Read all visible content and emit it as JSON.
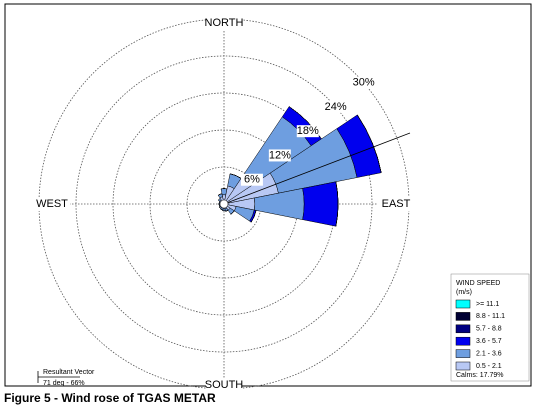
{
  "chart_data": {
    "type": "windrose",
    "categories": [
      "NORTH",
      null,
      null,
      null,
      "EAST",
      null,
      null,
      null,
      "SOUTH",
      null,
      null,
      null,
      "WEST",
      null,
      null,
      null
    ],
    "rlim": [
      0,
      30
    ],
    "rticks": [
      {
        "value": 6,
        "label": "6%"
      },
      {
        "value": 12,
        "label": "12%"
      },
      {
        "value": 18,
        "label": "18%"
      },
      {
        "value": 24,
        "label": "24%"
      },
      {
        "value": 30,
        "label": "30%"
      }
    ],
    "legend_title": "WIND SPEED",
    "legend_unit": "(m/s)",
    "calms": "Calms: 17.79%",
    "resultant_title": "Resultant Vector",
    "resultant_label": "71 deg - 66%",
    "caption": "Figure 5 - Wind rose of TGAS METAR",
    "series": [
      {
        "name": ">= 11.1",
        "color": "#00ffff",
        "values": [
          0,
          0,
          0,
          0,
          0,
          0,
          0,
          0,
          0,
          0,
          0,
          0,
          0,
          0,
          0,
          0
        ]
      },
      {
        "name": "8.8 - 11.1",
        "color": "#000033",
        "values": [
          0,
          0,
          0,
          0,
          0,
          0,
          0,
          0,
          0,
          0,
          0,
          0,
          0,
          0,
          0,
          0
        ]
      },
      {
        "name": "5.7 - 8.8",
        "color": "#000080",
        "values": [
          0,
          0,
          0,
          0,
          0,
          0,
          0,
          0,
          0,
          0,
          0,
          0,
          0,
          0,
          0,
          0
        ]
      },
      {
        "name": "3.6 - 5.7",
        "color": "#0000ee",
        "values": [
          0,
          0,
          2,
          4,
          5.5,
          0.3,
          0,
          0,
          0,
          0,
          0,
          0,
          0,
          0,
          0,
          0
        ]
      },
      {
        "name": "2.1 - 3.6",
        "color": "#6e9ee0",
        "values": [
          1,
          2,
          11,
          13,
          8,
          3,
          0.8,
          0.4,
          0.3,
          0.3,
          0.2,
          0.2,
          0.2,
          0.2,
          0.3,
          0.5
        ]
      },
      {
        "name": "0.5 - 2.1",
        "color": "#b8c8f4",
        "values": [
          1.5,
          3,
          6,
          9,
          5,
          2,
          1.2,
          0.8,
          0.8,
          0.7,
          0.7,
          0.6,
          0.6,
          0.6,
          0.8,
          1.2
        ]
      }
    ]
  }
}
